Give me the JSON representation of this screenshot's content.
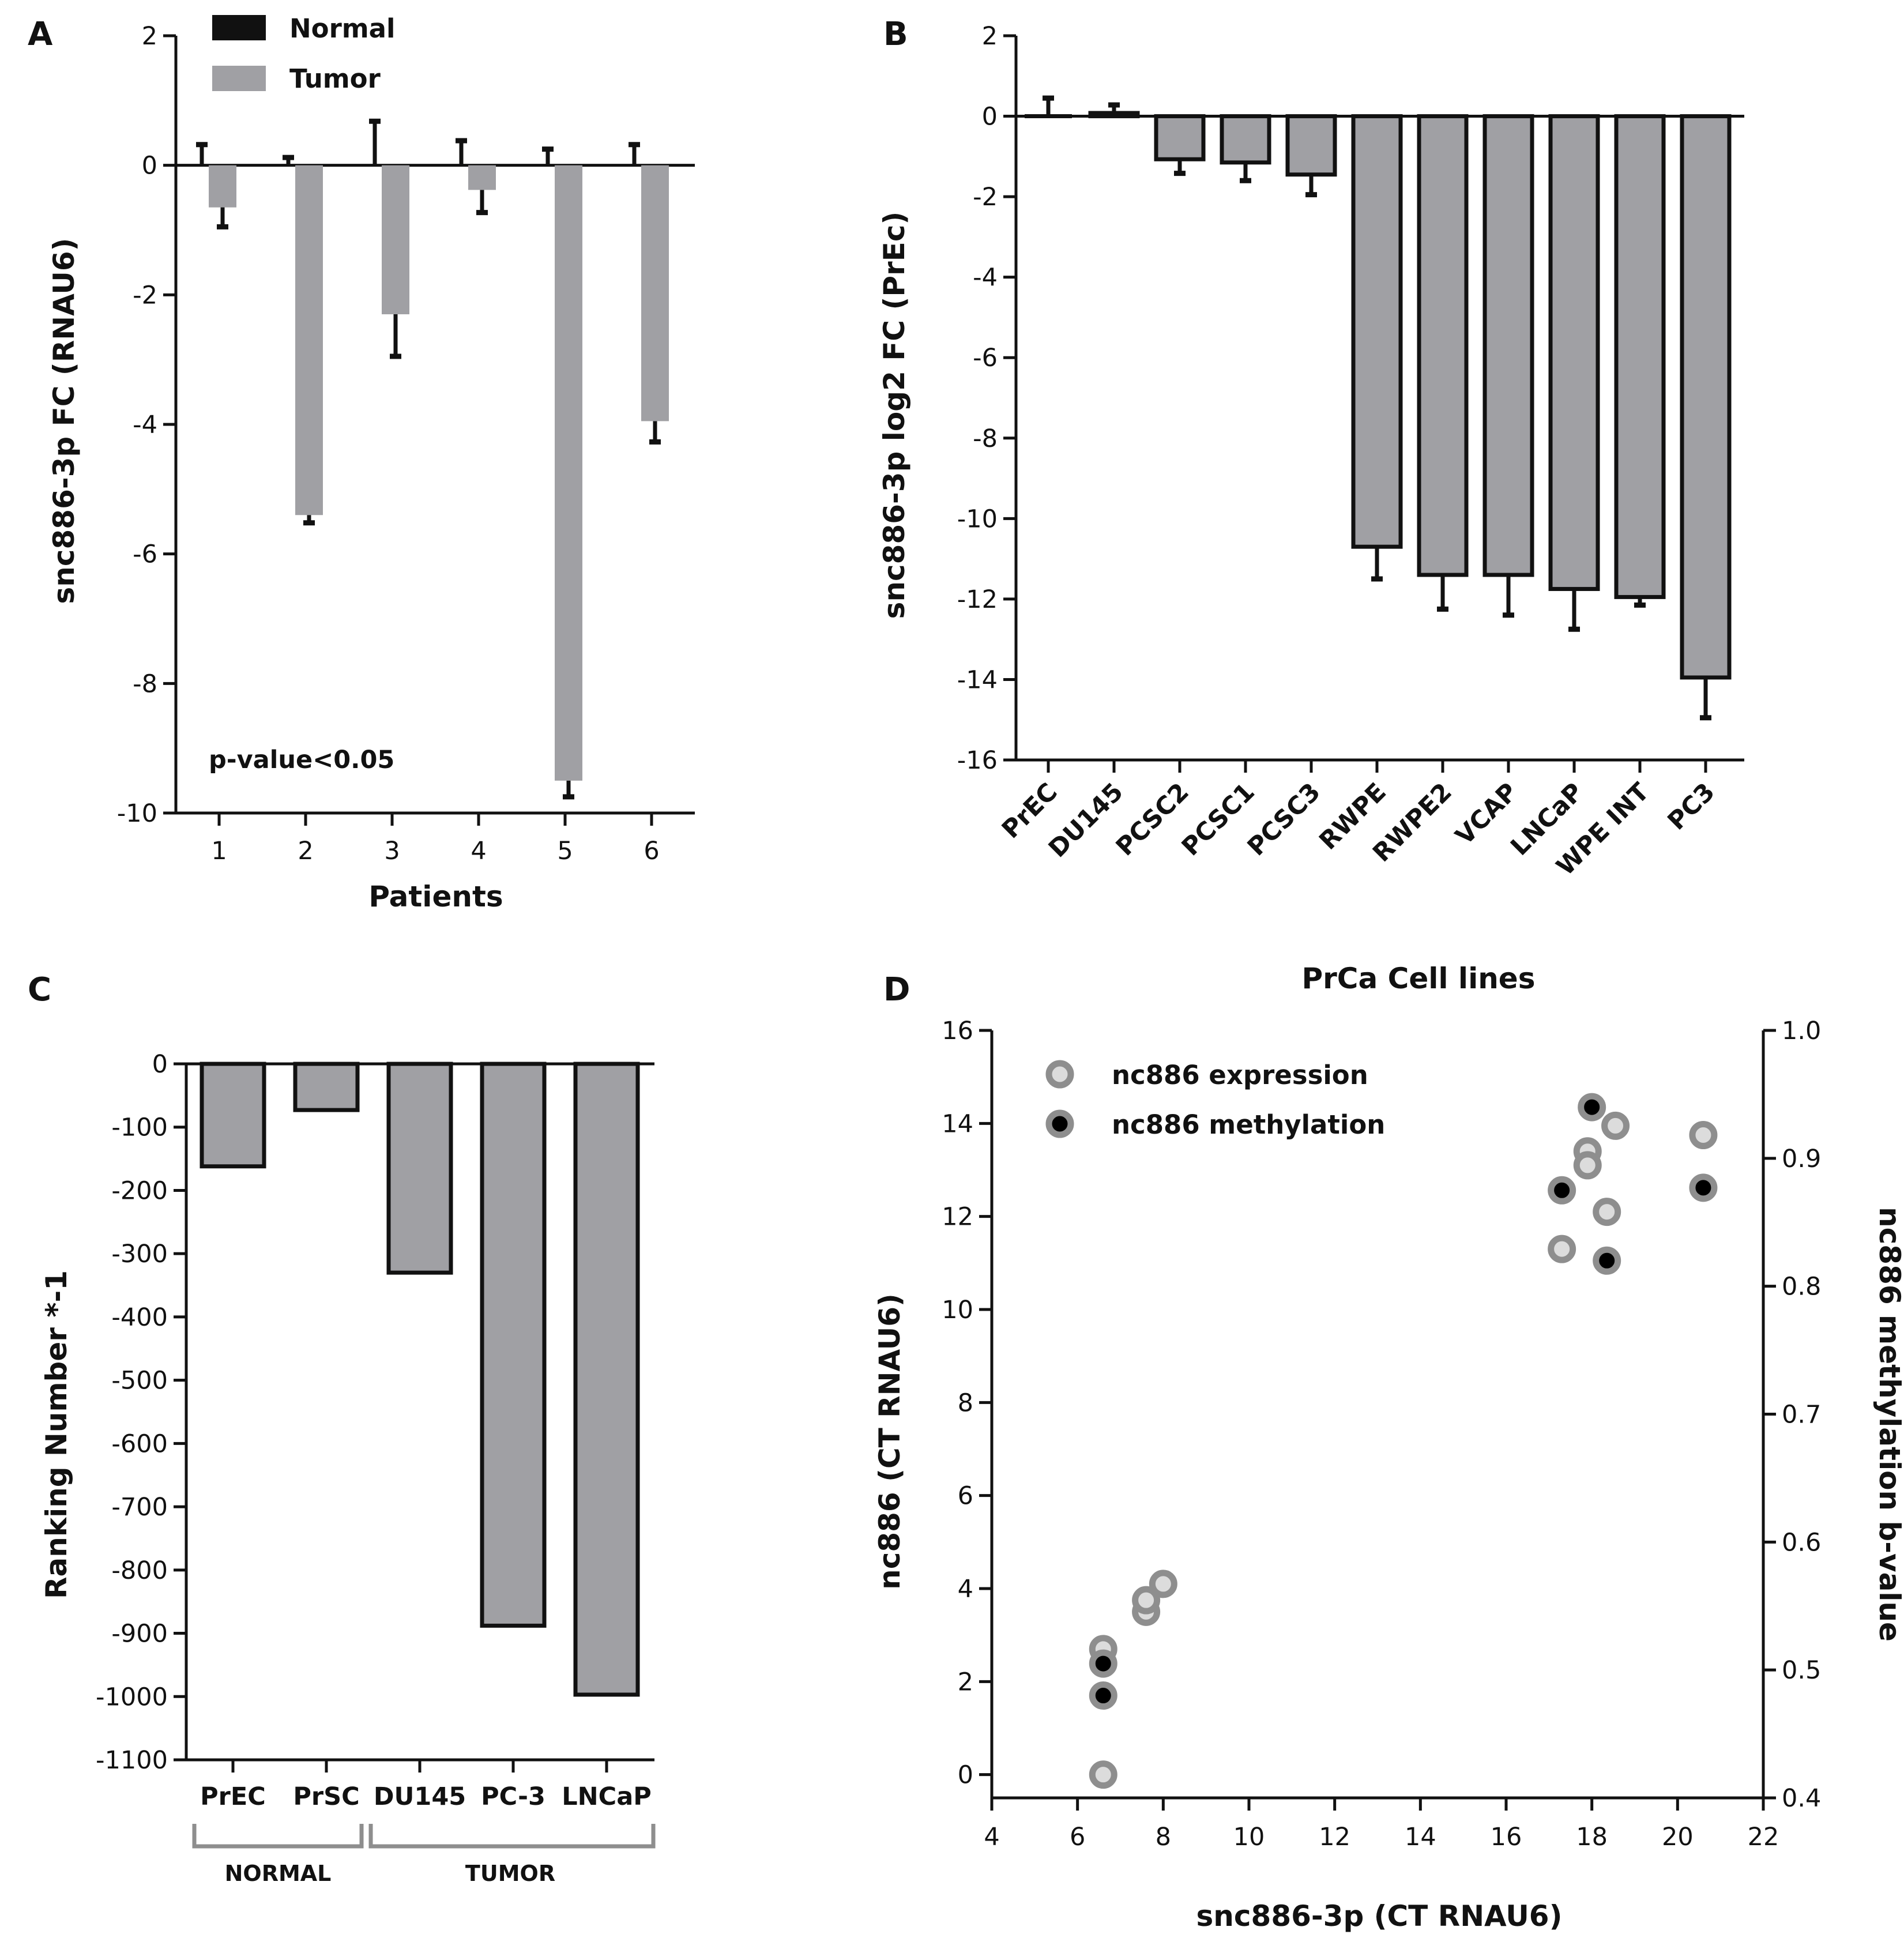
{
  "colors": {
    "normal": "#111111",
    "tumor": "#a0a0a4",
    "bar_fill": "#a0a0a4",
    "axis": "#111111",
    "bracket": "#8e8e8e",
    "expr_fill": "#dcdcdc",
    "expr_ring": "#8e8e8e",
    "meth_fill": "#000000"
  },
  "chart_data": [
    {
      "id": "A",
      "panel_label": "A",
      "type": "bar",
      "title": "",
      "xlabel": "Patients",
      "ylabel": "snc886-3p FC (RNAU6)",
      "ylim": [
        -10,
        2
      ],
      "yticks": [
        "2",
        "0",
        "-2",
        "-4",
        "-6",
        "-8",
        "-10"
      ],
      "categories": [
        "1",
        "2",
        "3",
        "4",
        "5",
        "6"
      ],
      "series": [
        {
          "name": "Normal",
          "values": [
            0,
            0,
            0,
            0,
            0,
            0
          ],
          "errors": [
            0.32,
            0.12,
            0.68,
            0.38,
            0.25,
            0.32
          ]
        },
        {
          "name": "Tumor",
          "values": [
            -0.65,
            -5.4,
            -2.3,
            -0.38,
            -9.5,
            -3.95
          ],
          "errors": [
            0.3,
            0.12,
            0.65,
            0.35,
            0.25,
            0.32
          ]
        }
      ],
      "legend": [
        "Normal",
        "Tumor"
      ],
      "annotation": "p-value<0.05"
    },
    {
      "id": "B",
      "panel_label": "B",
      "type": "bar",
      "title": "",
      "xlabel": "",
      "ylabel": "snc886-3p log2 FC (PrEc)",
      "ylim": [
        -16,
        2
      ],
      "yticks": [
        "2",
        "0",
        "-2",
        "-4",
        "-6",
        "-8",
        "-10",
        "-12",
        "-14",
        "-16"
      ],
      "categories": [
        "PrEC",
        "DU145",
        "PCSC2",
        "PCSC1",
        "PCSC3",
        "RWPE",
        "RWPE2",
        "VCAP",
        "LNCaP",
        "WPE INT",
        "PC3"
      ],
      "values": [
        0,
        0.08,
        -1.07,
        -1.15,
        -1.45,
        -10.7,
        -11.4,
        -11.4,
        -11.75,
        -11.95,
        -13.95
      ],
      "errors": [
        0.45,
        0.2,
        0.35,
        0.45,
        0.5,
        0.8,
        0.85,
        1.0,
        1.0,
        0.2,
        1.0
      ]
    },
    {
      "id": "C",
      "panel_label": "C",
      "type": "bar",
      "title": "",
      "xlabel": "",
      "ylabel": "Ranking Number *-1",
      "ylim": [
        -1100,
        0
      ],
      "yticks": [
        "0",
        "-100",
        "-200",
        "-300",
        "-400",
        "-500",
        "-600",
        "-700",
        "-800",
        "-900",
        "-1000",
        "-1100"
      ],
      "categories": [
        "PrEC",
        "PrSC",
        "DU145",
        "PC-3",
        "LNCaP"
      ],
      "values": [
        -162,
        -73,
        -330,
        -888,
        -997
      ],
      "groups": [
        {
          "label": "NORMAL",
          "members": [
            "PrEC",
            "PrSC"
          ]
        },
        {
          "label": "TUMOR",
          "members": [
            "DU145",
            "PC-3",
            "LNCaP"
          ]
        }
      ]
    },
    {
      "id": "D",
      "panel_label": "D",
      "type": "scatter",
      "title": "PrCa Cell lines",
      "xlabel": "snc886-3p (CT RNAU6)",
      "ylabel": "nc886 (CT RNAU6)",
      "y2label": "nc886 methylation b-value",
      "xlim": [
        4,
        22
      ],
      "ylim": [
        -0.5,
        16
      ],
      "y2lim": [
        0.4,
        1.0
      ],
      "xticks": [
        "4",
        "6",
        "8",
        "10",
        "12",
        "14",
        "16",
        "18",
        "20",
        "22"
      ],
      "yticks": [
        "16",
        "14",
        "12",
        "10",
        "8",
        "6",
        "4",
        "2",
        "0"
      ],
      "y2ticks": [
        "1.0",
        "0.9",
        "0.8",
        "0.7",
        "0.6",
        "0.5",
        "0.4"
      ],
      "series": [
        {
          "name": "nc886 expression",
          "axis": "left",
          "points": [
            [
              6.6,
              0.0
            ],
            [
              6.6,
              2.7
            ],
            [
              7.6,
              3.5
            ],
            [
              7.6,
              3.75
            ],
            [
              8.0,
              4.1
            ],
            [
              17.3,
              11.3
            ],
            [
              17.9,
              13.4
            ],
            [
              17.9,
              13.1
            ],
            [
              18.35,
              12.1
            ],
            [
              18.55,
              13.95
            ],
            [
              20.6,
              13.75
            ]
          ]
        },
        {
          "name": "nc886 methylation",
          "axis": "right",
          "points": [
            [
              6.6,
              0.48
            ],
            [
              6.6,
              0.505
            ],
            [
              17.3,
              0.875
            ],
            [
              18.0,
              0.94
            ],
            [
              18.35,
              0.82
            ],
            [
              20.6,
              0.877
            ]
          ]
        }
      ],
      "legend": [
        "nc886 expression",
        "nc886 methylation"
      ]
    }
  ]
}
